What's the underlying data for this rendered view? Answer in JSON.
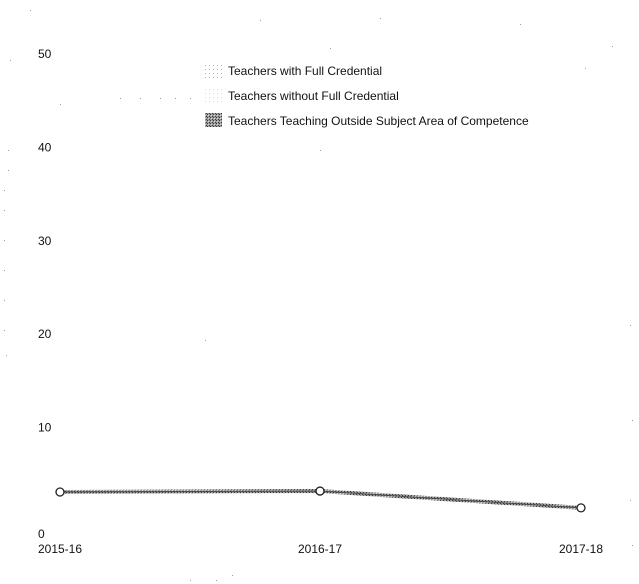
{
  "chart_data": {
    "type": "line",
    "categories": [
      "2015-16",
      "2016-17",
      "2017-18"
    ],
    "series": [
      {
        "name": "Teachers with Full Credential",
        "values": [
          null,
          null,
          null
        ],
        "color": "#d0d0d0"
      },
      {
        "name": "Teachers without Full Credential",
        "values": [
          null,
          null,
          null
        ],
        "color": "#e0e0e0"
      },
      {
        "name": "Teachers Teaching Outside Subject Area of Competence",
        "values": [
          3,
          3.1,
          1.3
        ],
        "color": "#555555"
      }
    ],
    "y_ticks": [
      "0",
      "10",
      "20",
      "30",
      "40",
      "50"
    ],
    "ylim": [
      0,
      50
    ],
    "grid": false,
    "legend_position": "top-center"
  }
}
